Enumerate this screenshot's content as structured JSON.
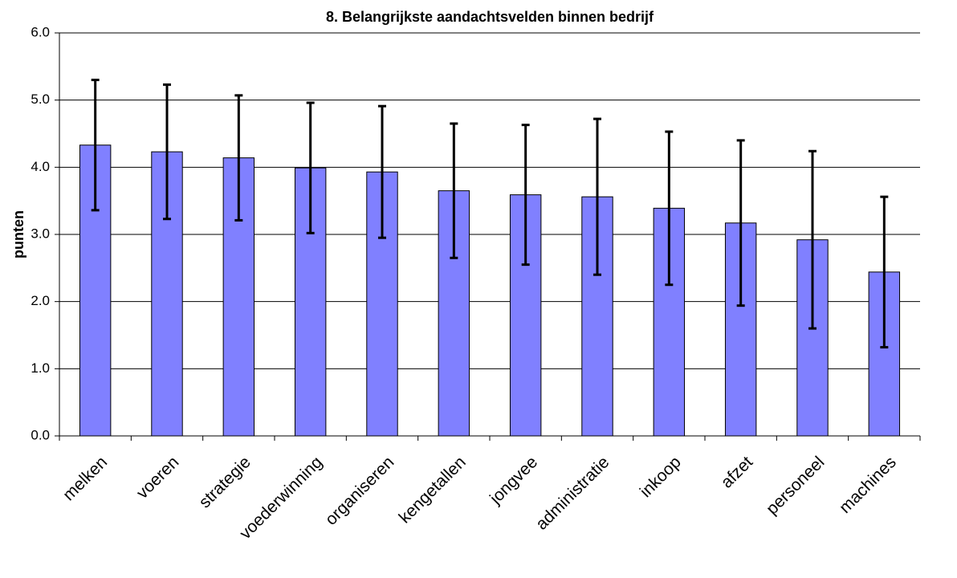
{
  "chart_data": {
    "type": "bar",
    "title": "8. Belangrijkste aandachtsvelden binnen bedrijf",
    "y_label": "punten",
    "categories": [
      "melken",
      "voeren",
      "strategie",
      "voederwinning",
      "organiseren",
      "kengetallen",
      "jongvee",
      "administratie",
      "inkoop",
      "afzet",
      "personeel",
      "machines"
    ],
    "values": [
      4.33,
      4.23,
      4.14,
      3.99,
      3.93,
      3.65,
      3.59,
      3.56,
      3.39,
      3.17,
      2.92,
      2.44
    ],
    "errors": [
      0.97,
      1.0,
      0.93,
      0.97,
      0.98,
      1.0,
      1.04,
      1.16,
      1.14,
      1.23,
      1.32,
      1.12
    ],
    "color": "#8080ff",
    "ylim": [
      0,
      6
    ],
    "yticks": [
      {
        "value": 0,
        "label": "0.0"
      },
      {
        "value": 1,
        "label": "1.0"
      },
      {
        "value": 2,
        "label": "2.0"
      },
      {
        "value": 3,
        "label": "3.0"
      },
      {
        "value": 4,
        "label": "4.0"
      },
      {
        "value": 5,
        "label": "5.0"
      },
      {
        "value": 6,
        "label": "6.0"
      }
    ],
    "grid": true
  }
}
